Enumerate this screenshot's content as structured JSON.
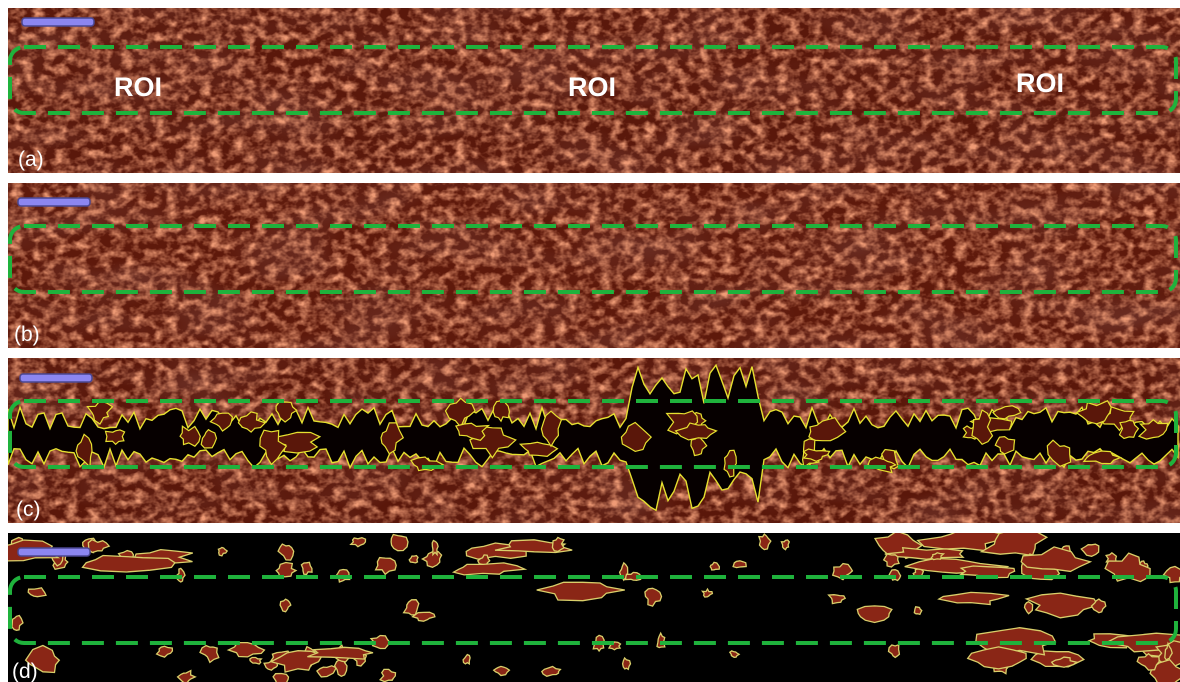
{
  "panels": [
    {
      "label": "(a)",
      "roi_labels": [
        "ROI",
        "ROI",
        "ROI"
      ]
    },
    {
      "label": "(b)"
    },
    {
      "label": "(c)"
    },
    {
      "label": "(d)"
    }
  ]
}
